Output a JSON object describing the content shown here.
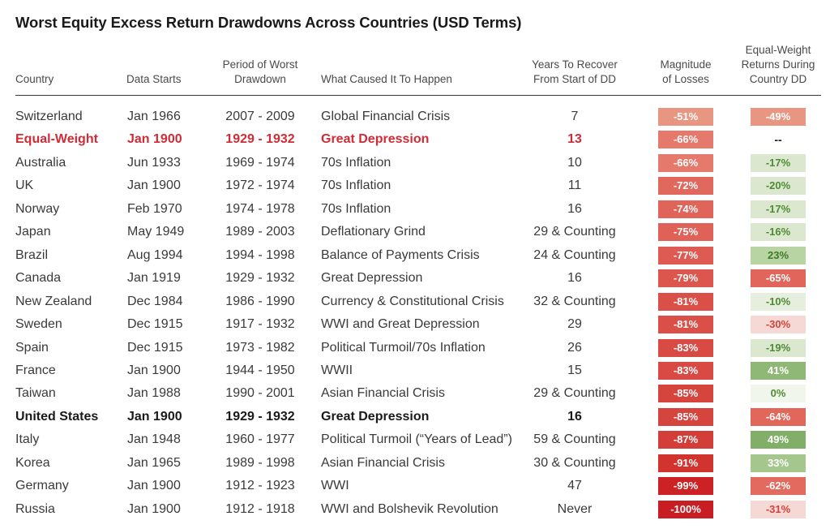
{
  "title": "Worst Equity Excess Return Drawdowns Across Countries (USD Terms)",
  "headers": {
    "country": "Country",
    "data_starts": "Data Starts",
    "period_l1": "Period of Worst",
    "period_l2": "Drawdown",
    "cause": "What Caused It To Happen",
    "years_l1": "Years To Recover",
    "years_l2": "From Start of DD",
    "mag_l1": "Magnitude",
    "mag_l2": "of Losses",
    "eq_l1": "Equal-Weight",
    "eq_l2": "Returns During",
    "eq_l3": "Country DD"
  },
  "rows": [
    {
      "country": "Switzerland",
      "starts": "Jan 1966",
      "period": "2007 - 2009",
      "cause": "Global Financial Crisis",
      "years": "7",
      "loss": "-51%",
      "loss_color": "#e89682",
      "eq": "-49%",
      "eq_color": "#e89682",
      "eq_text": "#ffffff",
      "style": ""
    },
    {
      "country": "Equal-Weight",
      "starts": "Jan 1900",
      "period": "1929 - 1932",
      "cause": "Great Depression",
      "years": "13",
      "loss": "-66%",
      "loss_color": "#e57a6c",
      "eq": "--",
      "eq_color": "",
      "eq_text": "#1a1a1a",
      "style": "red"
    },
    {
      "country": "Australia",
      "starts": "Jun 1933",
      "period": "1969 - 1974",
      "cause": "70s Inflation",
      "years": "10",
      "loss": "-66%",
      "loss_color": "#e57a6c",
      "eq": "-17%",
      "eq_color": "#dbe8cf",
      "eq_text": "#4f8a35",
      "style": ""
    },
    {
      "country": "UK",
      "starts": "Jan 1900",
      "period": "1972 - 1974",
      "cause": "70s Inflation",
      "years": "11",
      "loss": "-72%",
      "loss_color": "#e1685d",
      "eq": "-20%",
      "eq_color": "#dbe8cf",
      "eq_text": "#4f8a35",
      "style": ""
    },
    {
      "country": "Norway",
      "starts": "Feb 1970",
      "period": "1974 - 1978",
      "cause": "70s Inflation",
      "years": "16",
      "loss": "-74%",
      "loss_color": "#e06459",
      "eq": "-17%",
      "eq_color": "#dbe8cf",
      "eq_text": "#4f8a35",
      "style": ""
    },
    {
      "country": "Japan",
      "starts": "May 1949",
      "period": "1989 - 2003",
      "cause": "Deflationary Grind",
      "years": "29 & Counting",
      "loss": "-75%",
      "loss_color": "#df6157",
      "eq": "-16%",
      "eq_color": "#dbe8cf",
      "eq_text": "#4f8a35",
      "style": ""
    },
    {
      "country": "Brazil",
      "starts": "Aug 1994",
      "period": "1994 - 1998",
      "cause": "Balance of Payments Crisis",
      "years": "24 & Counting",
      "loss": "-77%",
      "loss_color": "#dd5b52",
      "eq": "23%",
      "eq_color": "#b9d4a3",
      "eq_text": "#3e7a28",
      "style": ""
    },
    {
      "country": "Canada",
      "starts": "Jan 1919",
      "period": "1929 - 1932",
      "cause": "Great Depression",
      "years": "16",
      "loss": "-79%",
      "loss_color": "#dc564d",
      "eq": "-65%",
      "eq_color": "#e1655a",
      "eq_text": "#ffffff",
      "style": ""
    },
    {
      "country": "New Zealand",
      "starts": "Dec 1984",
      "period": "1986 - 1990",
      "cause": "Currency & Constitutional Crisis",
      "years": "32 & Counting",
      "loss": "-81%",
      "loss_color": "#da5048",
      "eq": "-10%",
      "eq_color": "#e6efdd",
      "eq_text": "#4f8a35",
      "style": ""
    },
    {
      "country": "Sweden",
      "starts": "Dec 1915",
      "period": "1917 - 1932",
      "cause": "WWI and Great Depression",
      "years": "29",
      "loss": "-81%",
      "loss_color": "#da5048",
      "eq": "-30%",
      "eq_color": "#f6d9d4",
      "eq_text": "#d2423c",
      "style": ""
    },
    {
      "country": "Spain",
      "starts": "Dec 1915",
      "period": "1973 - 1982",
      "cause": "Political Turmoil/70s Inflation",
      "years": "26",
      "loss": "-83%",
      "loss_color": "#d84a43",
      "eq": "-19%",
      "eq_color": "#dbe8cf",
      "eq_text": "#4f8a35",
      "style": ""
    },
    {
      "country": "France",
      "starts": "Jan 1900",
      "period": "1944 - 1950",
      "cause": "WWII",
      "years": "15",
      "loss": "-83%",
      "loss_color": "#d84a43",
      "eq": "41%",
      "eq_color": "#8fb877",
      "eq_text": "#ffffff",
      "style": ""
    },
    {
      "country": "Taiwan",
      "starts": "Jan 1988",
      "period": "1990 - 2001",
      "cause": "Asian Financial Crisis",
      "years": "29 & Counting",
      "loss": "-85%",
      "loss_color": "#d6443e",
      "eq": "0%",
      "eq_color": "#f1f6ec",
      "eq_text": "#4f8a35",
      "style": ""
    },
    {
      "country": "United States",
      "starts": "Jan 1900",
      "period": "1929 - 1932",
      "cause": "Great Depression",
      "years": "16",
      "loss": "-85%",
      "loss_color": "#d6443e",
      "eq": "-64%",
      "eq_color": "#e1675b",
      "eq_text": "#ffffff",
      "style": "bold"
    },
    {
      "country": "Italy",
      "starts": "Jan 1948",
      "period": "1960 - 1977",
      "cause": "Political Turmoil (“Years of Lead”)",
      "years": "59 & Counting",
      "loss": "-87%",
      "loss_color": "#d43e39",
      "eq": "49%",
      "eq_color": "#82af68",
      "eq_text": "#ffffff",
      "style": ""
    },
    {
      "country": "Korea",
      "starts": "Jan 1965",
      "period": "1989 - 1998",
      "cause": "Asian Financial Crisis",
      "years": "30 & Counting",
      "loss": "-91%",
      "loss_color": "#d1342f",
      "eq": "33%",
      "eq_color": "#a5c68d",
      "eq_text": "#ffffff",
      "style": ""
    },
    {
      "country": "Germany",
      "starts": "Jan 1900",
      "period": "1912 - 1923",
      "cause": "WWI",
      "years": "47",
      "loss": "-99%",
      "loss_color": "#cc2226",
      "eq": "-62%",
      "eq_color": "#e26a5e",
      "eq_text": "#ffffff",
      "style": ""
    },
    {
      "country": "Russia",
      "starts": "Jan 1900",
      "period": "1912 - 1918",
      "cause": "WWI and Bolshevik Revolution",
      "years": "Never",
      "loss": "-100%",
      "loss_color": "#c81e23",
      "eq": "-31%",
      "eq_color": "#f6d9d4",
      "eq_text": "#d2423c",
      "style": ""
    }
  ]
}
